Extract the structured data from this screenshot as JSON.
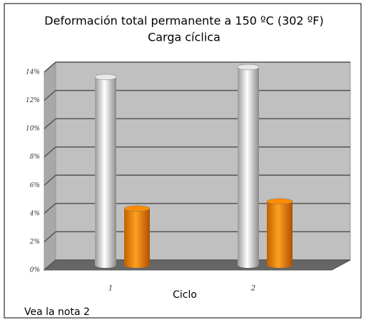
{
  "chart_data": {
    "type": "bar3d",
    "title": [
      "Deformación total permanente a 150 ºC (302 ºF)",
      "Carga cíclica"
    ],
    "categories": [
      "1",
      "2"
    ],
    "x_label": "Ciclo",
    "note": "Vea la nota 2",
    "series": [
      {
        "color": "#e8e8e8",
        "values": [
          13.3,
          14.0
        ]
      },
      {
        "color": "#ff8c00",
        "values": [
          4.0,
          4.5
        ]
      }
    ],
    "ylim": [
      0,
      14
    ],
    "yticks": [
      {
        "value": 0,
        "label": "0%"
      },
      {
        "value": 2,
        "label": "2%"
      },
      {
        "value": 4,
        "label": "4%"
      },
      {
        "value": 6,
        "label": "6%"
      },
      {
        "value": 8,
        "label": "8%"
      },
      {
        "value": 10,
        "label": "10%"
      },
      {
        "value": 12,
        "label": "12%"
      },
      {
        "value": 14,
        "label": "14%"
      }
    ],
    "grid": true
  }
}
